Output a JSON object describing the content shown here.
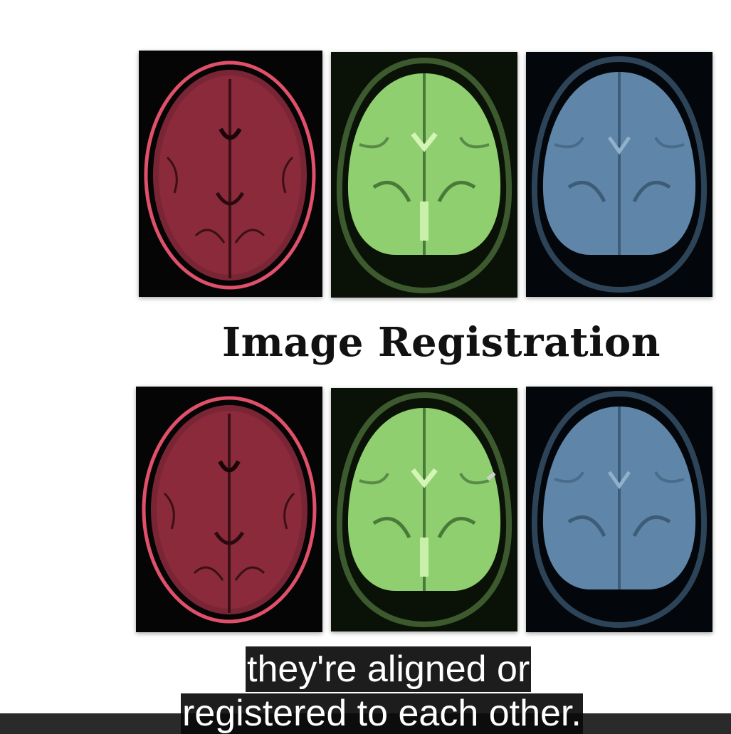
{
  "slide": {
    "title": "Image Registration",
    "top_row": [
      {
        "name": "red-axial-mri",
        "tint": "#8a2a3a",
        "outline": "#e0506a"
      },
      {
        "name": "green-coronal-mri",
        "tint": "#8fcf70",
        "outline": "#3d5a2f"
      },
      {
        "name": "blue-coronal-mri",
        "tint": "#5f86a8",
        "outline": "#2d4458"
      }
    ],
    "bottom_row": [
      {
        "name": "red-axial-mri",
        "tint": "#8a2a3a",
        "outline": "#e0506a"
      },
      {
        "name": "green-coronal-mri",
        "tint": "#8fcf70",
        "outline": "#3d5a2f"
      },
      {
        "name": "blue-coronal-mri",
        "tint": "#5f86a8",
        "outline": "#2d4458"
      }
    ]
  },
  "captions": {
    "line1": "they're aligned or",
    "line2": "registered to each other."
  }
}
